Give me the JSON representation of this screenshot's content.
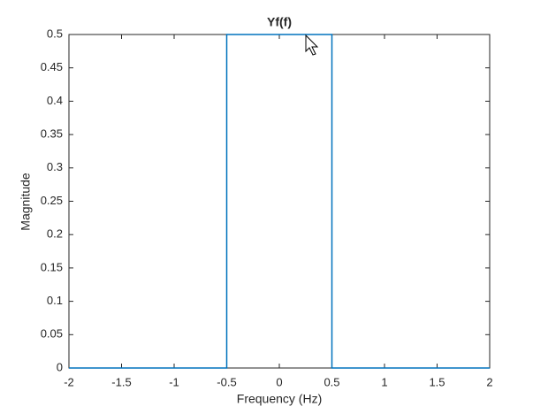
{
  "chart_data": {
    "type": "line",
    "title": "Yf(f)",
    "x_label": "Frequency (Hz)",
    "y_label": "Magnitude",
    "x": [
      -2,
      -0.5,
      -0.5,
      0.5,
      0.5,
      2
    ],
    "series": [
      {
        "name": "Yf(f)",
        "color": "#0072bd",
        "values": [
          0,
          0,
          0.5,
          0.5,
          0,
          0
        ]
      }
    ],
    "xlim": [
      -2,
      2
    ],
    "xticks": [
      -2,
      -1.5,
      -1,
      -0.5,
      0,
      0.5,
      1,
      1.5,
      2
    ],
    "ylim": [
      0,
      0.5
    ],
    "yticks": [
      0,
      0.05,
      0.1,
      0.15,
      0.2,
      0.25,
      0.3,
      0.35,
      0.4,
      0.45,
      0.5
    ],
    "grid": false
  }
}
